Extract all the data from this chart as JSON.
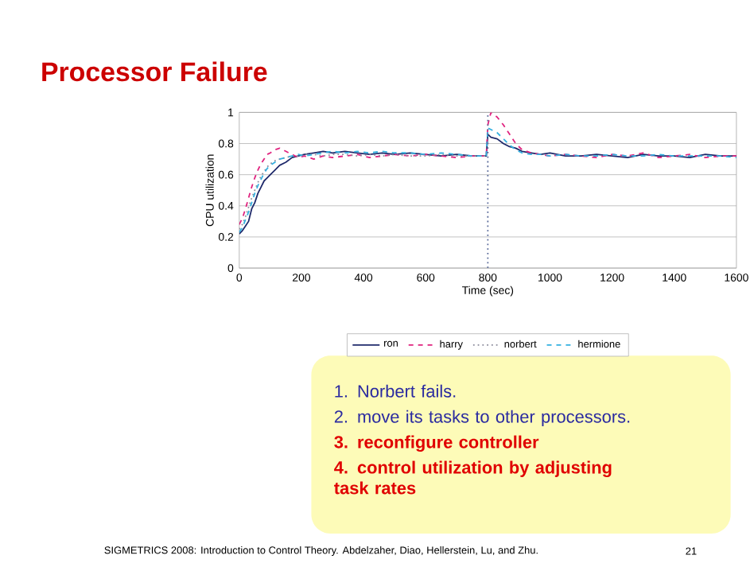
{
  "chart_data": {
    "type": "line",
    "title": "Processor Failure",
    "xlabel": "Time (sec)",
    "ylabel": "CPU utilization",
    "x": [
      0,
      10,
      20,
      30,
      40,
      50,
      60,
      70,
      80,
      90,
      100,
      115,
      130,
      150,
      170,
      190,
      210,
      240,
      270,
      300,
      340,
      380,
      420,
      460,
      500,
      550,
      600,
      650,
      700,
      750,
      795,
      800,
      810,
      830,
      850,
      870,
      890,
      910,
      940,
      970,
      1000,
      1050,
      1100,
      1150,
      1200,
      1250,
      1300,
      1350,
      1400,
      1450,
      1500,
      1550,
      1600
    ],
    "series": [
      {
        "name": "ron",
        "color": "#1f2a6b",
        "line_style": "solid",
        "values": [
          0.22,
          0.24,
          0.27,
          0.3,
          0.38,
          0.42,
          0.48,
          0.52,
          0.56,
          0.58,
          0.6,
          0.63,
          0.66,
          0.68,
          0.71,
          0.72,
          0.73,
          0.74,
          0.75,
          0.74,
          0.75,
          0.74,
          0.73,
          0.74,
          0.73,
          0.74,
          0.73,
          0.72,
          0.73,
          0.72,
          0.72,
          0.86,
          0.84,
          0.83,
          0.8,
          0.78,
          0.77,
          0.75,
          0.74,
          0.73,
          0.74,
          0.72,
          0.72,
          0.73,
          0.72,
          0.71,
          0.73,
          0.72,
          0.72,
          0.71,
          0.73,
          0.72,
          0.72
        ]
      },
      {
        "name": "harry",
        "color": "#e0237f",
        "line_style": "dashed",
        "values": [
          0.28,
          0.32,
          0.38,
          0.45,
          0.52,
          0.58,
          0.63,
          0.67,
          0.7,
          0.73,
          0.74,
          0.76,
          0.77,
          0.75,
          0.73,
          0.71,
          0.72,
          0.7,
          0.72,
          0.71,
          0.72,
          0.73,
          0.71,
          0.72,
          0.73,
          0.72,
          0.73,
          0.72,
          0.71,
          0.72,
          0.72,
          0.92,
          1.0,
          0.97,
          0.92,
          0.86,
          0.8,
          0.76,
          0.74,
          0.73,
          0.72,
          0.73,
          0.72,
          0.71,
          0.73,
          0.72,
          0.74,
          0.71,
          0.72,
          0.73,
          0.71,
          0.72,
          0.72
        ]
      },
      {
        "name": "norbert",
        "color": "#8c8c9c",
        "line_style": "dotted",
        "values": [
          0.25,
          0.28,
          0.33,
          0.39,
          0.45,
          0.5,
          0.55,
          0.59,
          0.62,
          0.65,
          0.67,
          0.69,
          0.7,
          0.71,
          0.72,
          0.72,
          0.73,
          0.73,
          0.72,
          0.73,
          0.73,
          0.72,
          0.73,
          0.72,
          0.73,
          0.72,
          0.72,
          0.73,
          0.72,
          0.72,
          0.72,
          null,
          null,
          null,
          null,
          null,
          null,
          null,
          null,
          null,
          null,
          null,
          null,
          null,
          null,
          null,
          null,
          null,
          null,
          null,
          null,
          null,
          null
        ]
      },
      {
        "name": "hermione",
        "color": "#33b0e0",
        "line_style": "dashed",
        "values": [
          0.23,
          0.26,
          0.31,
          0.36,
          0.42,
          0.48,
          0.53,
          0.57,
          0.61,
          0.64,
          0.66,
          0.68,
          0.7,
          0.71,
          0.72,
          0.73,
          0.72,
          0.73,
          0.74,
          0.75,
          0.74,
          0.75,
          0.74,
          0.75,
          0.74,
          0.74,
          0.73,
          0.74,
          0.73,
          0.72,
          0.72,
          0.9,
          0.89,
          0.87,
          0.83,
          0.79,
          0.76,
          0.74,
          0.73,
          0.73,
          0.72,
          0.73,
          0.72,
          0.72,
          0.73,
          0.72,
          0.72,
          0.73,
          0.72,
          0.72,
          0.72,
          0.72,
          0.71
        ]
      }
    ],
    "ref_lines": [
      {
        "axis": "x",
        "value": 800,
        "color": "#5a6a9a",
        "line_style": "dotted"
      }
    ],
    "xlim": [
      0,
      1600
    ],
    "xticks": [
      0,
      200,
      400,
      600,
      800,
      1000,
      1200,
      1400,
      1600
    ],
    "ylim": [
      0,
      1
    ],
    "yticks": [
      0,
      0.2,
      0.4,
      0.6,
      0.8,
      1
    ],
    "grid": "y",
    "legend": "bottom",
    "annotations": [
      "1. Norbert fails.",
      "2. move its tasks to other processors.",
      "3. reconfigure controller",
      "4. control utilization by adjusting task rates",
      "SIGMETRICS 2008: Introduction to Control Theory. Abdelzaher, Diao, Hellerstein, Lu, and Zhu.",
      "21"
    ]
  }
}
